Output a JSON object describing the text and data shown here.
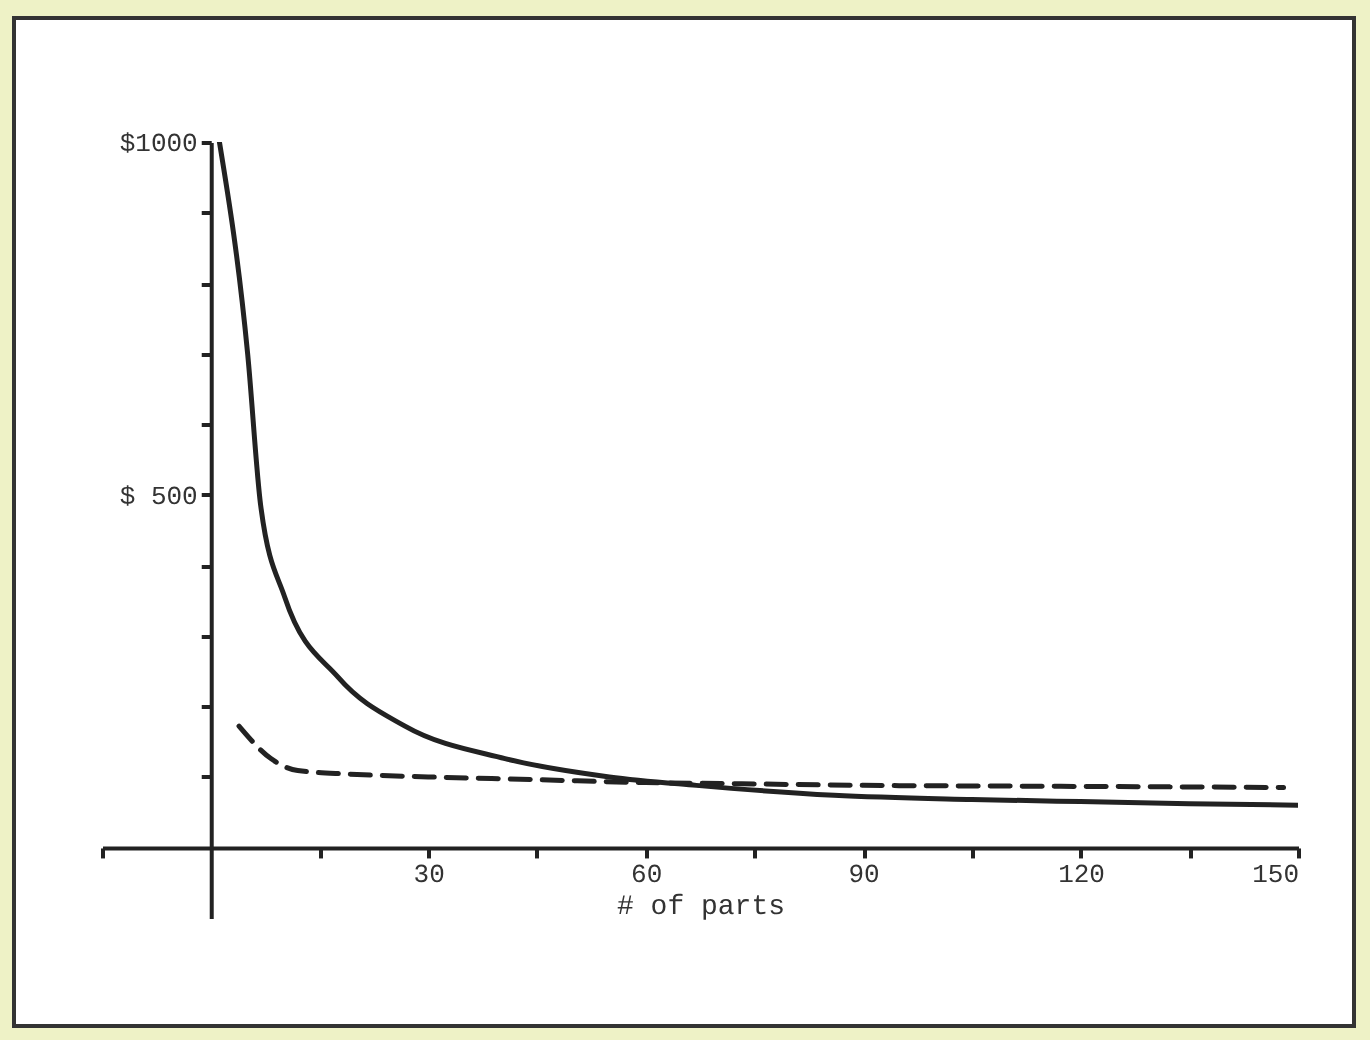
{
  "chart_data": {
    "type": "line",
    "xlabel": "# of parts",
    "xlim": [
      -15,
      150
    ],
    "ylim": [
      -100,
      1000
    ],
    "xticks": [
      {
        "value": -15,
        "label": null
      },
      {
        "value": 15,
        "label": null
      },
      30,
      {
        "value": 45,
        "label": null
      },
      60,
      {
        "value": 75,
        "label": null
      },
      90,
      {
        "value": 105,
        "label": null
      },
      120,
      {
        "value": 135,
        "label": null
      },
      150
    ],
    "yticks": [
      {
        "value": 100,
        "label": null
      },
      {
        "value": 200,
        "label": null
      },
      {
        "value": 300,
        "label": null
      },
      {
        "value": 400,
        "label": null
      },
      {
        "value": 500,
        "label": "$ 500"
      },
      {
        "value": 600,
        "label": null
      },
      {
        "value": 700,
        "label": null
      },
      {
        "value": 800,
        "label": null
      },
      {
        "value": 900,
        "label": null
      },
      {
        "value": 1000,
        "label": "$1000"
      }
    ],
    "grid": false,
    "marker": "none",
    "series": [
      {
        "color": "#222222",
        "line_style": "solid",
        "x": [
          1.2,
          5.1,
          6.9,
          10.2,
          17.6,
          26.8,
          40.6,
          55,
          67,
          86,
          105,
          120,
          135,
          150
        ],
        "values": [
          1000,
          699,
          484,
          355,
          241,
          172,
          126,
          100,
          88,
          74,
          68,
          65,
          62,
          60
        ]
      },
      {
        "color": "#222222",
        "line_style": "dashed",
        "x": [
          3.9,
          8.3,
          12,
          19,
          30,
          45,
          60,
          75,
          90,
          110,
          130,
          148
        ],
        "values": [
          172,
          126,
          109,
          104,
          100,
          96,
          92,
          90,
          88,
          87,
          86,
          85
        ]
      }
    ]
  }
}
